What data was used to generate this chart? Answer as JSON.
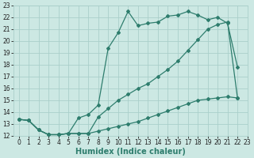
{
  "line1_x": [
    0,
    1,
    2,
    3,
    4,
    5,
    6,
    7,
    8,
    9,
    10,
    11,
    12,
    13,
    14,
    15,
    16,
    17,
    18,
    19,
    20,
    21,
    22
  ],
  "line1_y": [
    13.4,
    13.3,
    12.5,
    12.1,
    12.1,
    12.2,
    13.5,
    13.8,
    14.6,
    19.4,
    20.7,
    22.5,
    21.3,
    21.5,
    21.6,
    22.1,
    22.2,
    22.5,
    22.2,
    21.8,
    22.0,
    21.5,
    17.8
  ],
  "line2_x": [
    0,
    1,
    2,
    3,
    4,
    5,
    6,
    7,
    8,
    9,
    10,
    11,
    12,
    13,
    14,
    15,
    16,
    17,
    18,
    19,
    20,
    21,
    22
  ],
  "line2_y": [
    13.4,
    13.3,
    12.5,
    12.1,
    12.1,
    12.2,
    12.2,
    12.2,
    13.6,
    14.3,
    15.0,
    15.5,
    16.0,
    16.4,
    17.0,
    17.6,
    18.3,
    19.2,
    20.1,
    21.0,
    21.4,
    21.6,
    15.2
  ],
  "line3_x": [
    0,
    1,
    2,
    3,
    4,
    5,
    6,
    7,
    8,
    9,
    10,
    11,
    12,
    13,
    14,
    15,
    16,
    17,
    18,
    19,
    20,
    21,
    22
  ],
  "line3_y": [
    13.4,
    13.3,
    12.5,
    12.1,
    12.1,
    12.2,
    12.2,
    12.2,
    12.4,
    12.6,
    12.8,
    13.0,
    13.2,
    13.5,
    13.8,
    14.1,
    14.4,
    14.7,
    15.0,
    15.1,
    15.2,
    15.3,
    15.2
  ],
  "color": "#2e7d6d",
  "bg_color": "#cce8e3",
  "grid_color": "#aacfca",
  "xlabel": "Humidex (Indice chaleur)",
  "xlim": [
    -0.5,
    23
  ],
  "ylim": [
    12,
    23
  ],
  "xticks": [
    0,
    1,
    2,
    3,
    4,
    5,
    6,
    7,
    8,
    9,
    10,
    11,
    12,
    13,
    14,
    15,
    16,
    17,
    18,
    19,
    20,
    21,
    22,
    23
  ],
  "yticks": [
    12,
    13,
    14,
    15,
    16,
    17,
    18,
    19,
    20,
    21,
    22,
    23
  ],
  "xlabel_fontsize": 7,
  "tick_fontsize": 5.5,
  "marker": "D",
  "markersize": 2.0,
  "linewidth": 0.9
}
